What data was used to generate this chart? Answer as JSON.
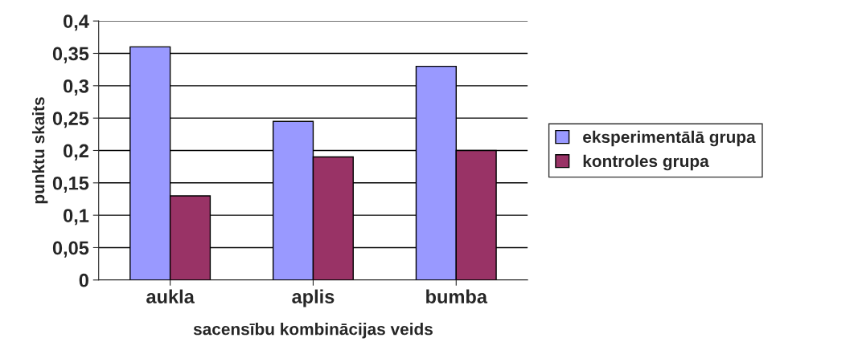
{
  "chart_data": {
    "type": "bar",
    "xlabel": "sacensību kombinācijas veids",
    "ylabel": "punktu skaits",
    "categories": [
      "aukla",
      "aplis",
      "bumba"
    ],
    "series": [
      {
        "name": "eksperimentālā grupa",
        "color": "#9999ff",
        "values": [
          0.36,
          0.245,
          0.33
        ]
      },
      {
        "name": "kontroles grupa",
        "color": "#993366",
        "values": [
          0.13,
          0.19,
          0.2
        ]
      }
    ],
    "ylim": [
      0,
      0.4
    ],
    "yticks": [
      0,
      {
        "value": 0.05,
        "label": "0,05"
      },
      {
        "value": 0.1,
        "label": "0,1"
      },
      {
        "value": 0.15,
        "label": "0,15"
      },
      {
        "value": 0.2,
        "label": "0,2"
      },
      {
        "value": 0.25,
        "label": "0,25"
      },
      {
        "value": 0.3,
        "label": "0,3"
      },
      {
        "value": 0.35,
        "label": "0,35"
      },
      {
        "value": 0.4,
        "label": "0,4"
      }
    ],
    "grid": "y",
    "legend": "right"
  }
}
